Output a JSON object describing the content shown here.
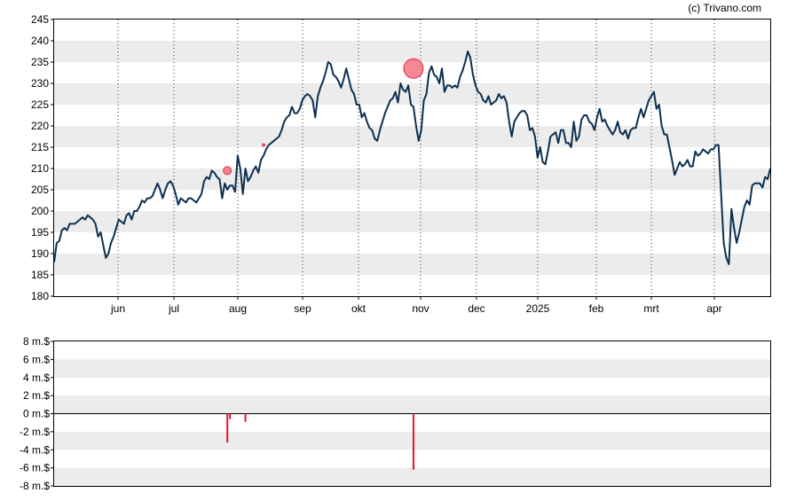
{
  "credit": "(c) Trivano.com",
  "colors": {
    "price_line": "#0d3050",
    "band": "#ececec",
    "bar": "#e8142a",
    "marker": "#f06070",
    "axis": "#000000",
    "zero_line": "#000000"
  },
  "chart_data": [
    {
      "type": "line",
      "x_tick_labels": [
        "jun",
        "jul",
        "aug",
        "sep",
        "okt",
        "nov",
        "dec",
        "2025",
        "feb",
        "mrt",
        "apr"
      ],
      "y_tick_labels": [
        "245",
        "240",
        "235",
        "230",
        "225",
        "220",
        "215",
        "210",
        "205",
        "200",
        "195",
        "190",
        "185",
        "180"
      ],
      "ylim": [
        180,
        245
      ],
      "grid": "vertical dotted at month starts, alternating horizontal bands",
      "series": [
        {
          "values": [
            188,
            192.5,
            193,
            195.5,
            196,
            195.5,
            197,
            197,
            197,
            197.5,
            198,
            198.5,
            198,
            199,
            198.5,
            198,
            197,
            194,
            195,
            192,
            189,
            190,
            192.5,
            194,
            196,
            198,
            197.5,
            197,
            199,
            199.5,
            198,
            200,
            200,
            201,
            202.5,
            202,
            203,
            203,
            203.5,
            205,
            206.5,
            205,
            203,
            205,
            206.5,
            207,
            206,
            204,
            201.5,
            203,
            202.5,
            202,
            203,
            203,
            202.5,
            202,
            203,
            204,
            207,
            208,
            207.5,
            209.5,
            209,
            208,
            207.5,
            203,
            206.5,
            205,
            206,
            206,
            204.5,
            213,
            210,
            204,
            210,
            207,
            208,
            209.5,
            210.5,
            209,
            212,
            213,
            214.5,
            215.5,
            216,
            216.5,
            217,
            217.5,
            219,
            221,
            222,
            222.5,
            224.5,
            223,
            223,
            224,
            226,
            227,
            227.5,
            227,
            226,
            222,
            227,
            229,
            230.5,
            232.5,
            235,
            234.5,
            232,
            231.5,
            230.5,
            229,
            231,
            233.5,
            231,
            228.5,
            227.5,
            225,
            225,
            222,
            223,
            221,
            219.5,
            219,
            217,
            216.5,
            219,
            221,
            223,
            224.5,
            226,
            226.5,
            228,
            225.5,
            230,
            228.5,
            228,
            229.5,
            225,
            224.5,
            220,
            216.5,
            219,
            226,
            227.5,
            232.5,
            234,
            232,
            231.5,
            230,
            233.5,
            228,
            229.5,
            229.5,
            229,
            229.5,
            229,
            231.5,
            233,
            235,
            237.5,
            236,
            232,
            229.5,
            228,
            227.5,
            226,
            225.5,
            227,
            225,
            225.5,
            226,
            227.5,
            226.5,
            227,
            225.5,
            221,
            217.5,
            221,
            222,
            223,
            223.5,
            223.5,
            222.5,
            219,
            219.5,
            217.5,
            212.5,
            215,
            211.5,
            211,
            214,
            217.5,
            218,
            218.5,
            216,
            219,
            219,
            216,
            216,
            215,
            221,
            216.5,
            217.5,
            221.5,
            222.5,
            222.5,
            221,
            220.5,
            219,
            222,
            224,
            221,
            221.5,
            220,
            219,
            218,
            219,
            221,
            218.5,
            218,
            219,
            217,
            219,
            219.5,
            219.5,
            222,
            224,
            222,
            224,
            226,
            227,
            228,
            224,
            225,
            220,
            218,
            218,
            215,
            212,
            208.5,
            210,
            211.5,
            210.5,
            211,
            212,
            210.5,
            210.5,
            214,
            213,
            213.5,
            214.5,
            214,
            213.5,
            214.5,
            214.5,
            215.5,
            215.5,
            204,
            192.5,
            189,
            187.5,
            200.5,
            196,
            192.5,
            195,
            198,
            201,
            202.5,
            201.5,
            206,
            206.5,
            206.5,
            206.5,
            205.5,
            208,
            207.5,
            210
          ]
        }
      ],
      "markers": [
        {
          "index": 67,
          "value": 209.5,
          "size": "small"
        },
        {
          "index": 81,
          "value": 215.5,
          "size": "tiny"
        },
        {
          "index": 139,
          "value": 233.5,
          "size": "large"
        }
      ]
    },
    {
      "type": "bar",
      "y_tick_labels": [
        "8 m.$",
        "6 m.$",
        "4 m.$",
        "2 m.$",
        "0 m.$",
        "-2 m.$",
        "-4 m.$",
        "-6 m.$",
        "-8 m.$"
      ],
      "ylim": [
        -8,
        8
      ],
      "unit": "m.$",
      "bars": [
        {
          "index": 67,
          "value": -3.2
        },
        {
          "index": 68,
          "value": -0.6
        },
        {
          "index": 74,
          "value": -0.9
        },
        {
          "index": 139,
          "value": -6.2
        }
      ]
    }
  ]
}
